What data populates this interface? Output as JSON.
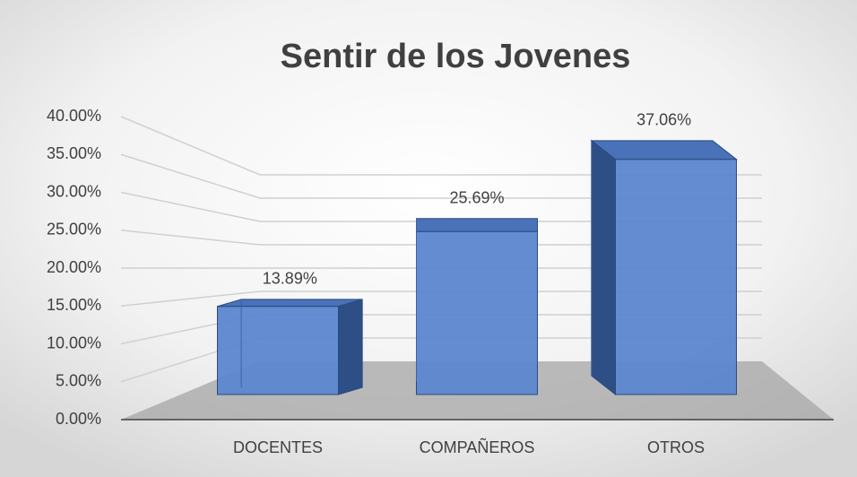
{
  "chart_data": {
    "type": "bar3d",
    "title": "Sentir de los Jovenes",
    "categories": [
      "DOCENTES",
      "COMPAÑEROS",
      "OTROS"
    ],
    "values": [
      13.89,
      25.69,
      37.06
    ],
    "value_labels": [
      "13.89%",
      "25.69%",
      "37.06%"
    ],
    "color": "#5b86cf",
    "ylim": [
      0,
      40
    ],
    "yticks": [
      {
        "value": 0,
        "label": "0.00%"
      },
      {
        "value": 5,
        "label": "5.00%"
      },
      {
        "value": 10,
        "label": "10.00%"
      },
      {
        "value": 15,
        "label": "15.00%"
      },
      {
        "value": 20,
        "label": "20.00%"
      },
      {
        "value": 25,
        "label": "25.00%"
      },
      {
        "value": 30,
        "label": "30.00%"
      },
      {
        "value": 35,
        "label": "35.00%"
      },
      {
        "value": 40,
        "label": "40.00%"
      }
    ],
    "grid": true
  }
}
